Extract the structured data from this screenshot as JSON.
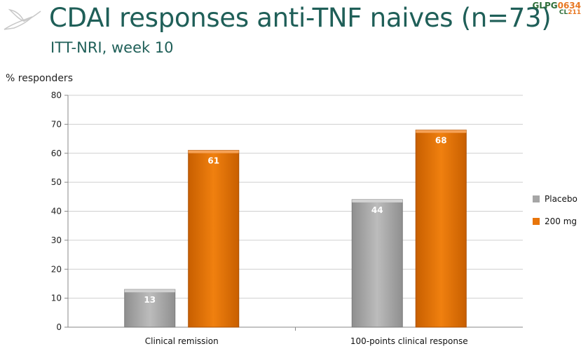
{
  "slide": {
    "title": "CDAI responses anti-TNF naives (n=73)",
    "subtitle": "ITT-NRI, week 10",
    "brand_line1_prefix": "GLPG",
    "brand_line1_num": "0634",
    "brand_line2_prefix": "CL",
    "brand_line2_num": "211"
  },
  "chart_data": {
    "type": "bar",
    "ylabel": "% responders",
    "ylim": [
      0,
      80
    ],
    "yticks": [
      0,
      10,
      20,
      30,
      40,
      50,
      60,
      70,
      80
    ],
    "grid": true,
    "legend": "right",
    "categories": [
      "Clinical remission",
      "100-points clinical response"
    ],
    "series": [
      {
        "name": "Placebo",
        "values": [
          13,
          44
        ],
        "labels": [
          "13",
          "44"
        ],
        "color": "#a6a6a6"
      },
      {
        "name": "200 mg",
        "values": [
          61,
          68
        ],
        "labels": [
          "61",
          "68"
        ],
        "color": "#e8750a"
      }
    ]
  }
}
